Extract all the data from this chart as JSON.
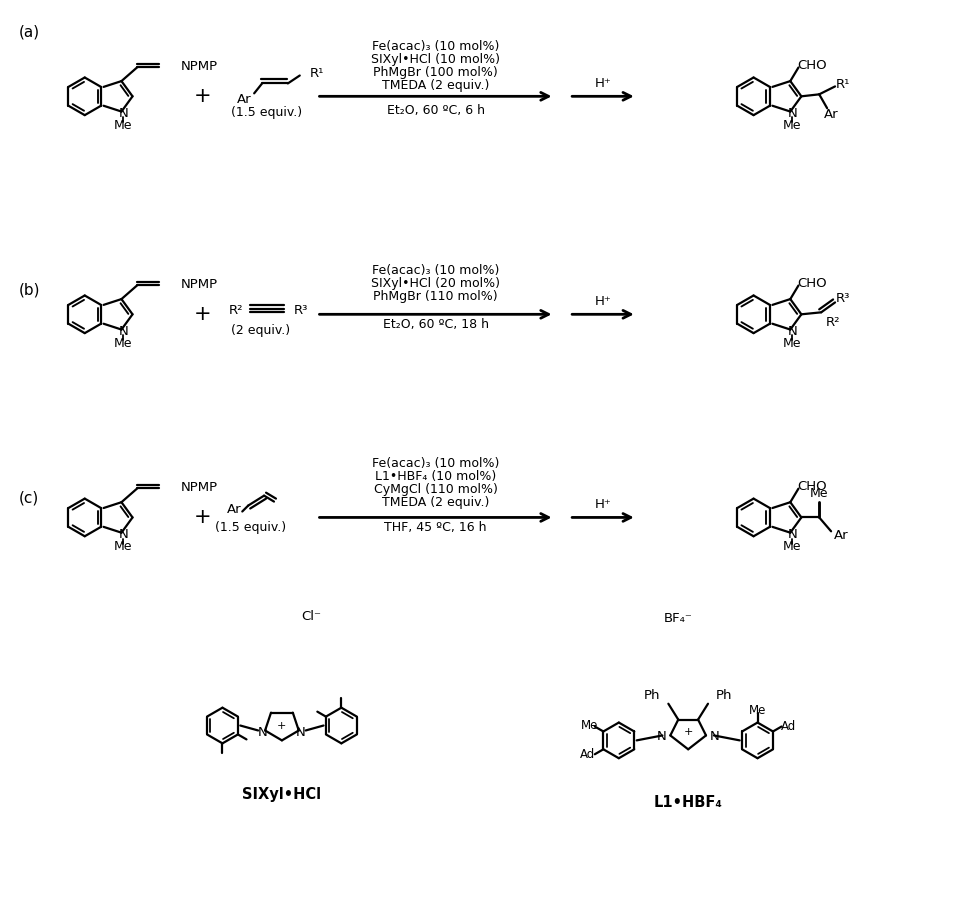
{
  "background_color": "#ffffff",
  "figsize": [
    9.8,
    9.13
  ],
  "dpi": 100,
  "section_labels": [
    "(a)",
    "(b)",
    "(c)"
  ],
  "reaction_a": {
    "cond1": "Fe(acac)₃ (10 mol%)",
    "cond2": "SIXyl•HCl (10 mol%)",
    "cond3": "PhMgBr (100 mol%)",
    "cond4": "TMEDA (2 equiv.)",
    "cond5": "Et₂O, 60 ºC, 6 h",
    "equiv": "(1.5 equiv.)",
    "hplus": "H⁺"
  },
  "reaction_b": {
    "cond1": "Fe(acac)₃ (10 mol%)",
    "cond2": "SIXyl•HCl (20 mol%)",
    "cond3": "PhMgBr (110 mol%)",
    "cond4": "Et₂O, 60 ºC, 18 h",
    "equiv": "(2 equiv.)",
    "hplus": "H⁺"
  },
  "reaction_c": {
    "cond1": "Fe(acac)₃ (10 mol%)",
    "cond2": "L1•HBF₄ (10 mol%)",
    "cond3": "CyMgCl (110 mol%)",
    "cond4": "TMEDA (2 equiv.)",
    "cond5": "THF, 45 ºC, 16 h",
    "equiv": "(1.5 equiv.)",
    "hplus": "H⁺"
  },
  "lig1_label": "SIXyl•HCl",
  "lig1_anion": "Cl⁻",
  "lig2_label": "L1•HBF₄",
  "lig2_anion": "BF₄⁻"
}
